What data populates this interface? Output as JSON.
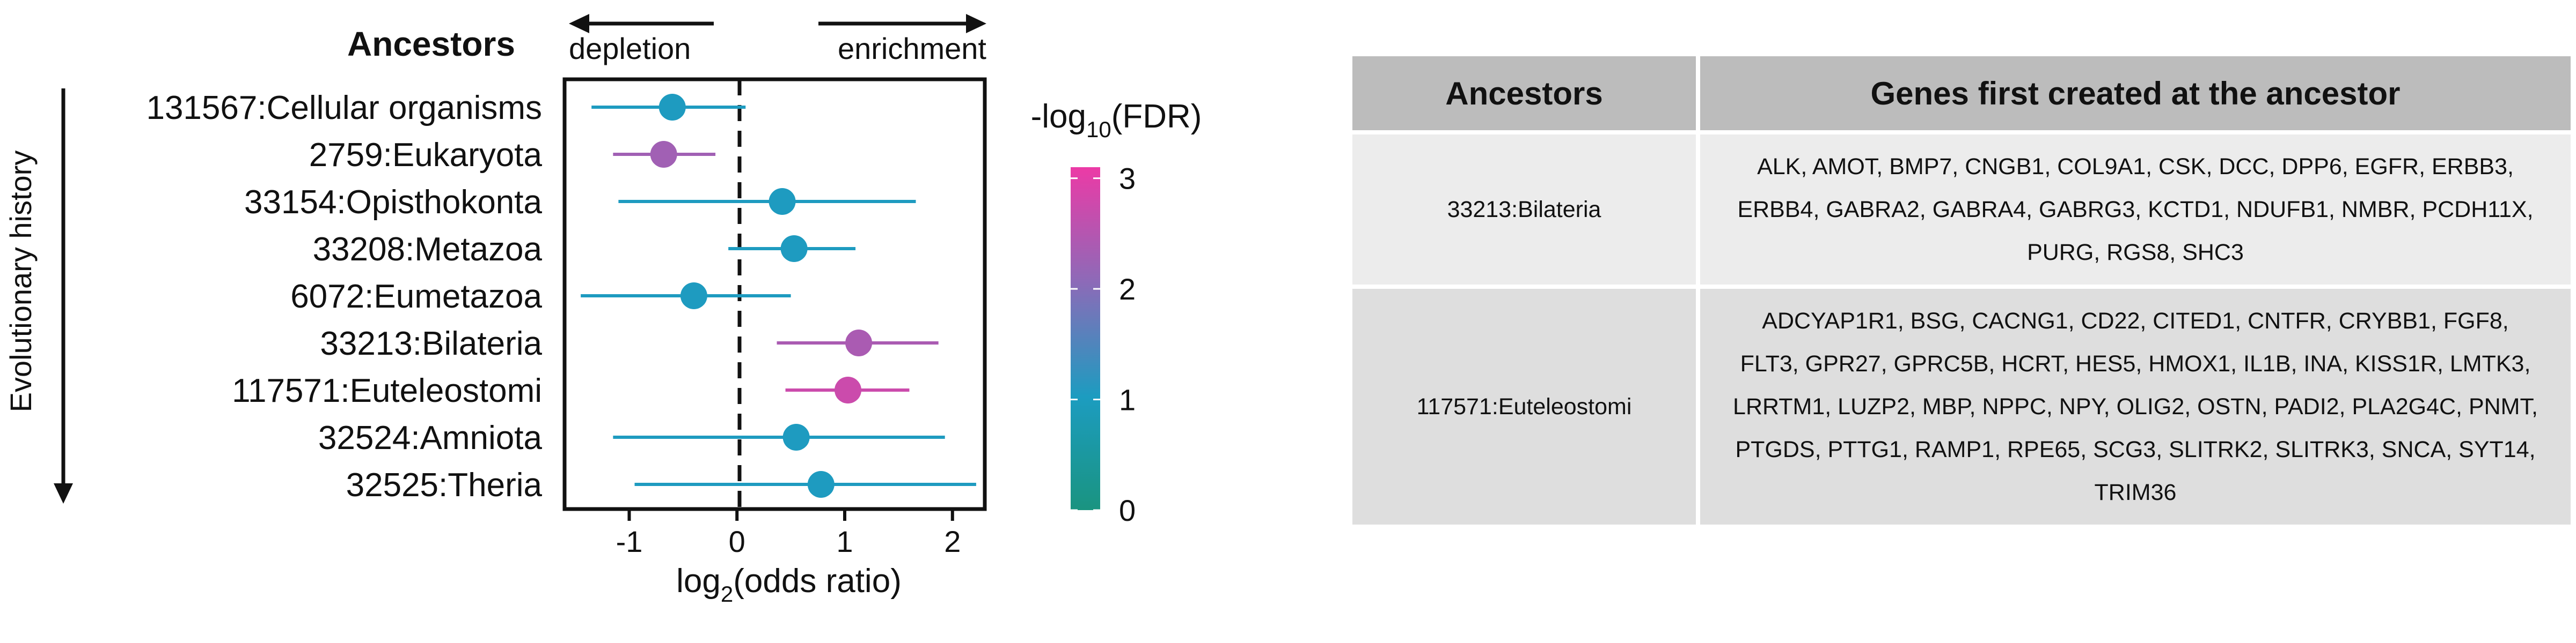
{
  "chart_data": {
    "type": "scatter",
    "title": "Ancestors",
    "xlabel_main": "log",
    "xlabel_sub": "2",
    "xlabel_tail": "(odds ratio)",
    "ylabel": "Evolutionary history",
    "xlim": [
      -1.6,
      2.3
    ],
    "xticks": [
      -1,
      0,
      1,
      2
    ],
    "depletion_label": "depletion",
    "enrichment_label": "enrichment",
    "reference_line": 0,
    "legend": {
      "title_main": "-log",
      "title_sub": "10",
      "title_tail": "(FDR)",
      "range": [
        0,
        3.1
      ],
      "ticks": [
        0,
        1,
        2,
        3
      ],
      "colors": [
        "#1a9480",
        "#1c9cc0",
        "#8b6bb8",
        "#ec3aa6"
      ]
    },
    "categories": [
      "131567:Cellular organisms",
      "2759:Eukaryota",
      "33154:Opisthokonta",
      "33208:Metazoa",
      "6072:Eumetazoa",
      "33213:Bilateria",
      "117571:Euteleostomi",
      "32524:Amniota",
      "32525:Theria"
    ],
    "series": [
      {
        "estimate": [
          -0.6,
          -0.68,
          0.42,
          0.53,
          -0.4,
          1.13,
          1.03,
          0.55,
          0.78
        ],
        "ci_low": [
          -1.35,
          -1.15,
          -1.1,
          -0.08,
          -1.45,
          0.37,
          0.45,
          -1.15,
          -0.95
        ],
        "ci_high": [
          0.08,
          -0.2,
          1.66,
          1.1,
          0.5,
          1.87,
          1.6,
          1.93,
          2.22
        ],
        "neg_log10_fdr": [
          1.05,
          2.3,
          1.05,
          1.05,
          1.05,
          2.4,
          2.75,
          1.05,
          1.05
        ]
      }
    ]
  },
  "table": {
    "header_ancestor": "Ancestors",
    "header_genes": "Genes first created at the ancestor",
    "rows": [
      {
        "ancestor": "33213:Bilateria",
        "genes": "ALK, AMOT, BMP7, CNGB1, COL9A1, CSK, DCC, DPP6, EGFR, ERBB3, ERBB4, GABRA2, GABRA4, GABRG3, KCTD1, NDUFB1, NMBR, PCDH11X, PURG, RGS8, SHC3"
      },
      {
        "ancestor": "117571:Euteleostomi",
        "genes": "ADCYAP1R1, BSG, CACNG1, CD22, CITED1, CNTFR, CRYBB1, FGF8, FLT3, GPR27, GPRC5B, HCRT, HES5, HMOX1, IL1B, INA, KISS1R, LMTK3, LRRTM1, LUZP2, MBP, NPPC, NPY, OLIG2, OSTN, PADI2, PLA2G4C, PNMT, PTGDS, PTTG1, RAMP1, RPE65, SCG3, SLITRK2, SLITRK3, SNCA, SYT14, TRIM36"
      }
    ]
  }
}
